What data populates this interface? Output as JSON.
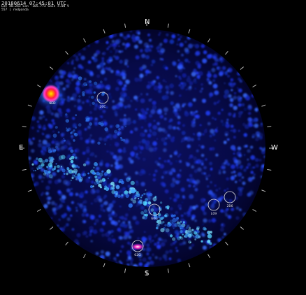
{
  "header": {
    "timestamp": "20180614 07:45:01 UTC",
    "location": "Lat 40.263 Lon -105.773 Gain 4.00 V",
    "filter": "557 | redpanda"
  },
  "compass": {
    "north": "N",
    "south": "S",
    "east": "E",
    "west": "W"
  },
  "sky_markers": [
    {
      "label": "20C"
    },
    {
      "label": "60G"
    },
    {
      "label": "L09"
    },
    {
      "label": "2B6"
    },
    {
      "label": "62G"
    }
  ],
  "aurora_label": "6ED",
  "colors": {
    "background": "#000000",
    "sky_base": "#05063a",
    "sky_noise": "#1e3aff",
    "glow": "#56d8ff",
    "hot_core": "#ffe000",
    "hot_mid": "#ff2040",
    "hot_outer": "#ff40c0",
    "marker": "#e0e0e0"
  }
}
